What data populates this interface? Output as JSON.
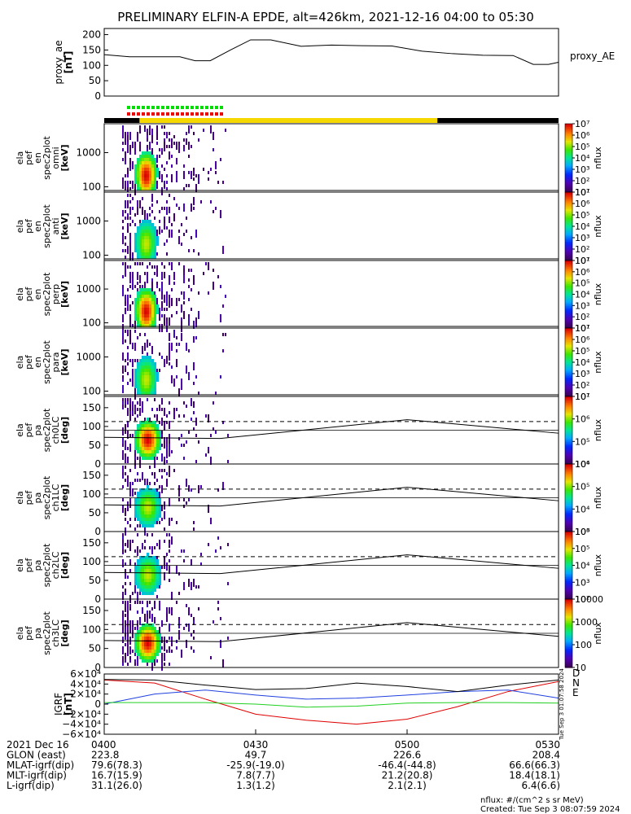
{
  "title": "PRELIMINARY ELFIN-A EPDE, alt=426km, 2021-12-16 04:00 to 05:30",
  "colors": {
    "bar_yellow": "#f5d800",
    "bar_black": "#000000",
    "dot_green": "#00dd00",
    "dot_red": "#ee0000",
    "line_black": "#000000",
    "line_blue": "#2040e0",
    "line_green": "#20d020",
    "line_red": "#e00000"
  },
  "chart_data": [
    {
      "type": "line",
      "name": "proxy_ae",
      "ylabel": [
        "proxy_ae",
        "[nT]"
      ],
      "yticks": [
        "0",
        "50",
        "100",
        "150",
        "200"
      ],
      "ylim": [
        0,
        220
      ],
      "legend": "proxy_AE",
      "x_minutes": [
        0,
        5,
        10,
        15,
        18,
        21,
        25,
        29,
        33,
        39,
        45,
        51,
        57,
        63,
        69,
        75,
        81,
        85,
        88,
        90
      ],
      "values": [
        135,
        128,
        128,
        128,
        115,
        115,
        150,
        183,
        183,
        162,
        166,
        164,
        163,
        146,
        138,
        133,
        132,
        103,
        103,
        110
      ]
    },
    {
      "type": "heatmap",
      "name": "omni",
      "ylabel": [
        "ela",
        "pef",
        "en",
        "spec2plot",
        "omni",
        "[keV]"
      ],
      "yticks": [
        "100",
        "1000"
      ],
      "colorbar": {
        "ticks": [
          "10¹",
          "10²",
          "10³",
          "10⁴",
          "10⁵",
          "10⁶",
          "10⁷"
        ],
        "label": "nflux"
      }
    },
    {
      "type": "heatmap",
      "name": "anti",
      "ylabel": [
        "ela",
        "pef",
        "en",
        "spec2plot",
        "anti",
        "[keV]"
      ],
      "yticks": [
        "100",
        "1000"
      ],
      "colorbar": {
        "ticks": [
          "10¹",
          "10²",
          "10³",
          "10⁴",
          "10⁵",
          "10⁶",
          "10⁷"
        ],
        "label": "nflux"
      }
    },
    {
      "type": "heatmap",
      "name": "perp",
      "ylabel": [
        "ela",
        "pef",
        "en",
        "spec2plot",
        "perp",
        "[keV]"
      ],
      "yticks": [
        "100",
        "1000"
      ],
      "colorbar": {
        "ticks": [
          "10¹",
          "10²",
          "10³",
          "10⁴",
          "10⁵",
          "10⁶",
          "10⁷"
        ],
        "label": "nflux"
      }
    },
    {
      "type": "heatmap",
      "name": "para",
      "ylabel": [
        "ela",
        "pef",
        "en",
        "spec2plot",
        "para",
        "[keV]"
      ],
      "yticks": [
        "100",
        "1000"
      ],
      "colorbar": {
        "ticks": [
          "10¹",
          "10²",
          "10³",
          "10⁴",
          "10⁵",
          "10⁶",
          "10⁷"
        ],
        "label": "nflux"
      }
    },
    {
      "type": "heatmap",
      "name": "ch0LC",
      "ylabel": [
        "ela",
        "pef",
        "pa",
        "spec2plot",
        "ch0LC",
        "[deg]"
      ],
      "yticks": [
        "0",
        "50",
        "100",
        "150"
      ],
      "colorbar": {
        "ticks": [
          "10⁴",
          "10⁵",
          "10⁶",
          "10⁷"
        ],
        "label": "nflux"
      }
    },
    {
      "type": "heatmap",
      "name": "ch1LC",
      "ylabel": [
        "ela",
        "pef",
        "pa",
        "spec2plot",
        "ch1LC",
        "[deg]"
      ],
      "yticks": [
        "0",
        "50",
        "100",
        "150"
      ],
      "colorbar": {
        "ticks": [
          "10³",
          "10⁴",
          "10⁵",
          "10⁶"
        ],
        "label": "nflux"
      }
    },
    {
      "type": "heatmap",
      "name": "ch2LC",
      "ylabel": [
        "ela",
        "pef",
        "pa",
        "spec2plot",
        "ch2LC",
        "[deg]"
      ],
      "yticks": [
        "0",
        "50",
        "100",
        "150"
      ],
      "colorbar": {
        "ticks": [
          "10²",
          "10³",
          "10⁴",
          "10⁵",
          "10⁶"
        ],
        "label": "nflux"
      }
    },
    {
      "type": "heatmap",
      "name": "ch3LC",
      "ylabel": [
        "ela",
        "pef",
        "pa",
        "spec2plot",
        "ch3LC",
        "[deg]"
      ],
      "yticks": [
        "0",
        "50",
        "100",
        "150"
      ],
      "colorbar": {
        "ticks": [
          "10",
          "100",
          "1000",
          "10000"
        ],
        "label": "nflux"
      }
    },
    {
      "type": "line",
      "name": "IGRF",
      "ylabel": [
        "IGRF",
        "[nT]"
      ],
      "yticks": [
        "−6×10⁴",
        "−4×10⁴",
        "−2×10⁴",
        "0",
        "2×10⁴",
        "4×10⁴",
        "6×10⁴"
      ],
      "ylim": [
        -60000,
        60000
      ],
      "legend": [
        "D",
        "N",
        "E"
      ],
      "x_minutes": [
        0,
        10,
        20,
        30,
        40,
        50,
        60,
        70,
        80,
        90
      ],
      "series": [
        {
          "name": "D",
          "values": [
            48000,
            42000,
            10000,
            -20000,
            -32000,
            -40000,
            -30000,
            -5000,
            25000,
            45000
          ]
        },
        {
          "name": "N",
          "values": [
            0,
            20000,
            28000,
            18000,
            10000,
            12000,
            18000,
            25000,
            28000,
            12000
          ]
        },
        {
          "name": "E",
          "values": [
            3000,
            3000,
            3000,
            0,
            -6000,
            -4000,
            2000,
            3000,
            3000,
            2000
          ]
        },
        {
          "values": [
            49000,
            48000,
            38000,
            29000,
            31000,
            42000,
            35000,
            25000,
            38000,
            48000
          ]
        }
      ]
    }
  ],
  "pa_dashed": 113,
  "pa_solid_lines": [
    [
      0,
      71
    ],
    [
      23,
      68
    ],
    [
      60,
      118
    ],
    [
      90,
      82
    ]
  ],
  "x_axis": {
    "ticks": [
      "0400",
      "0430",
      "0500",
      "0530"
    ],
    "rows": [
      {
        "label": "2021 Dec 16",
        "values": [
          "0400",
          "0430",
          "0500",
          "0530"
        ]
      },
      {
        "label": "GLON (east)",
        "values": [
          "223.8",
          "49.7",
          "226.6",
          "208.4"
        ]
      },
      {
        "label": "MLAT-igrf(dip)",
        "values": [
          "79.6(78.3)",
          "-25.9(-19.0)",
          "-46.4(-44.8)",
          "66.6(66.3)"
        ]
      },
      {
        "label": "MLT-igrf(dip)",
        "values": [
          "16.7(15.9)",
          "7.8(7.7)",
          "21.2(20.8)",
          "18.4(18.1)"
        ]
      },
      {
        "label": "L-igrf(dip)",
        "values": [
          "31.1(26.0)",
          "1.3(1.2)",
          "2.1(2.1)",
          "6.4(6.6)"
        ]
      }
    ]
  },
  "footer": {
    "units": "nflux: #/(cm^2 s sr MeV)",
    "created": "Created: Tue Sep  3 08:07:59 2024",
    "side_stamp": "Tue Sep  3 01:07:58 2024"
  }
}
